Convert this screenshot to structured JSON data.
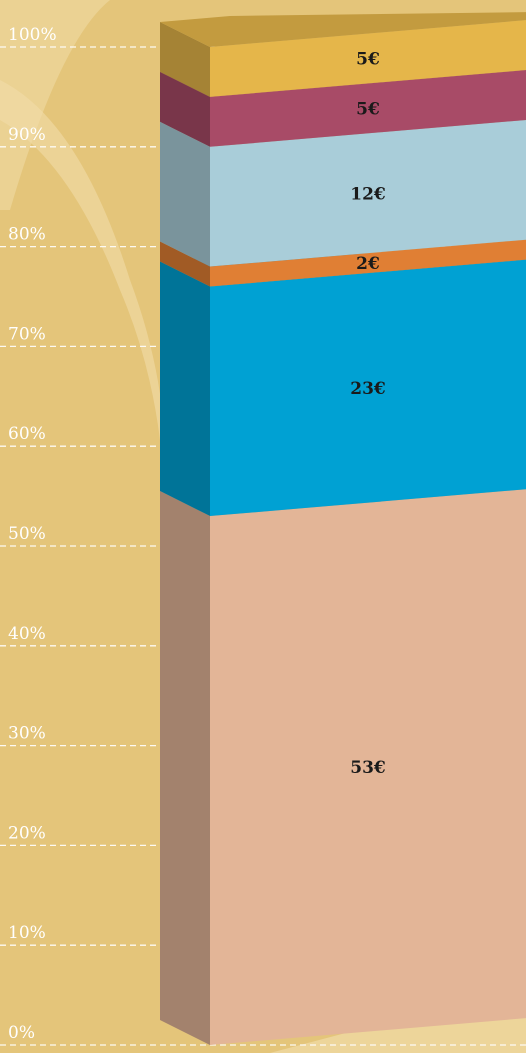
{
  "chart_data": {
    "type": "bar",
    "subtype": "stacked-3d-column",
    "y_ticks": [
      "0%",
      "10%",
      "20%",
      "30%",
      "40%",
      "50%",
      "60%",
      "70%",
      "80%",
      "90%",
      "100%"
    ],
    "ylim": [
      0,
      100
    ],
    "grid": true,
    "segments": [
      {
        "label": "53€",
        "value": 53,
        "color": "#e3b597"
      },
      {
        "label": "23€",
        "value": 23,
        "color": "#00a1d3"
      },
      {
        "label": "2€",
        "value": 2,
        "color": "#e07f34"
      },
      {
        "label": "12€",
        "value": 12,
        "color": "#a9cdd9"
      },
      {
        "label": "5€",
        "value": 5,
        "color": "#a84b67"
      },
      {
        "label": "5€",
        "value": 5,
        "color": "#e5b64a"
      }
    ]
  },
  "colors": {
    "background": "#e4c57a",
    "background_light": "#f1dca8",
    "gridline": "#ffffff"
  }
}
